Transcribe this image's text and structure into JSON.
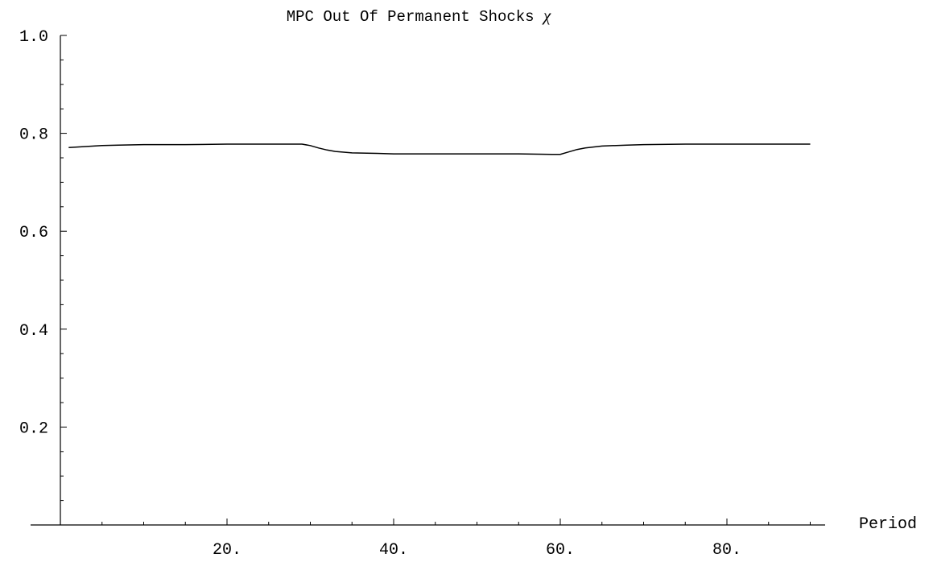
{
  "chart_data": {
    "type": "line",
    "title": "MPC Out Of Permanent Shocks",
    "title_symbol": "χ",
    "xlabel": "Period",
    "ylabel": "",
    "xlim": [
      0,
      92
    ],
    "ylim": [
      0,
      1.0
    ],
    "x_ticks": [
      20,
      40,
      60,
      80
    ],
    "x_tick_labels": [
      "20.",
      "40.",
      "60.",
      "80."
    ],
    "y_ticks": [
      0.2,
      0.4,
      0.6,
      0.8,
      1.0
    ],
    "y_tick_labels": [
      "0.2",
      "0.4",
      "0.6",
      "0.8",
      "1.0"
    ],
    "grid": false,
    "series": [
      {
        "x": [
          1,
          2,
          3,
          5,
          7,
          10,
          15,
          20,
          25,
          29,
          30,
          31,
          32,
          33,
          35,
          38,
          40,
          45,
          50,
          55,
          59,
          60,
          61,
          62,
          63,
          65,
          68,
          70,
          75,
          80,
          85,
          90
        ],
        "y": [
          0.771,
          0.772,
          0.773,
          0.775,
          0.776,
          0.777,
          0.777,
          0.778,
          0.778,
          0.778,
          0.775,
          0.77,
          0.766,
          0.763,
          0.76,
          0.759,
          0.758,
          0.758,
          0.758,
          0.758,
          0.757,
          0.757,
          0.762,
          0.767,
          0.77,
          0.774,
          0.776,
          0.777,
          0.778,
          0.778,
          0.778,
          0.778
        ]
      }
    ]
  }
}
